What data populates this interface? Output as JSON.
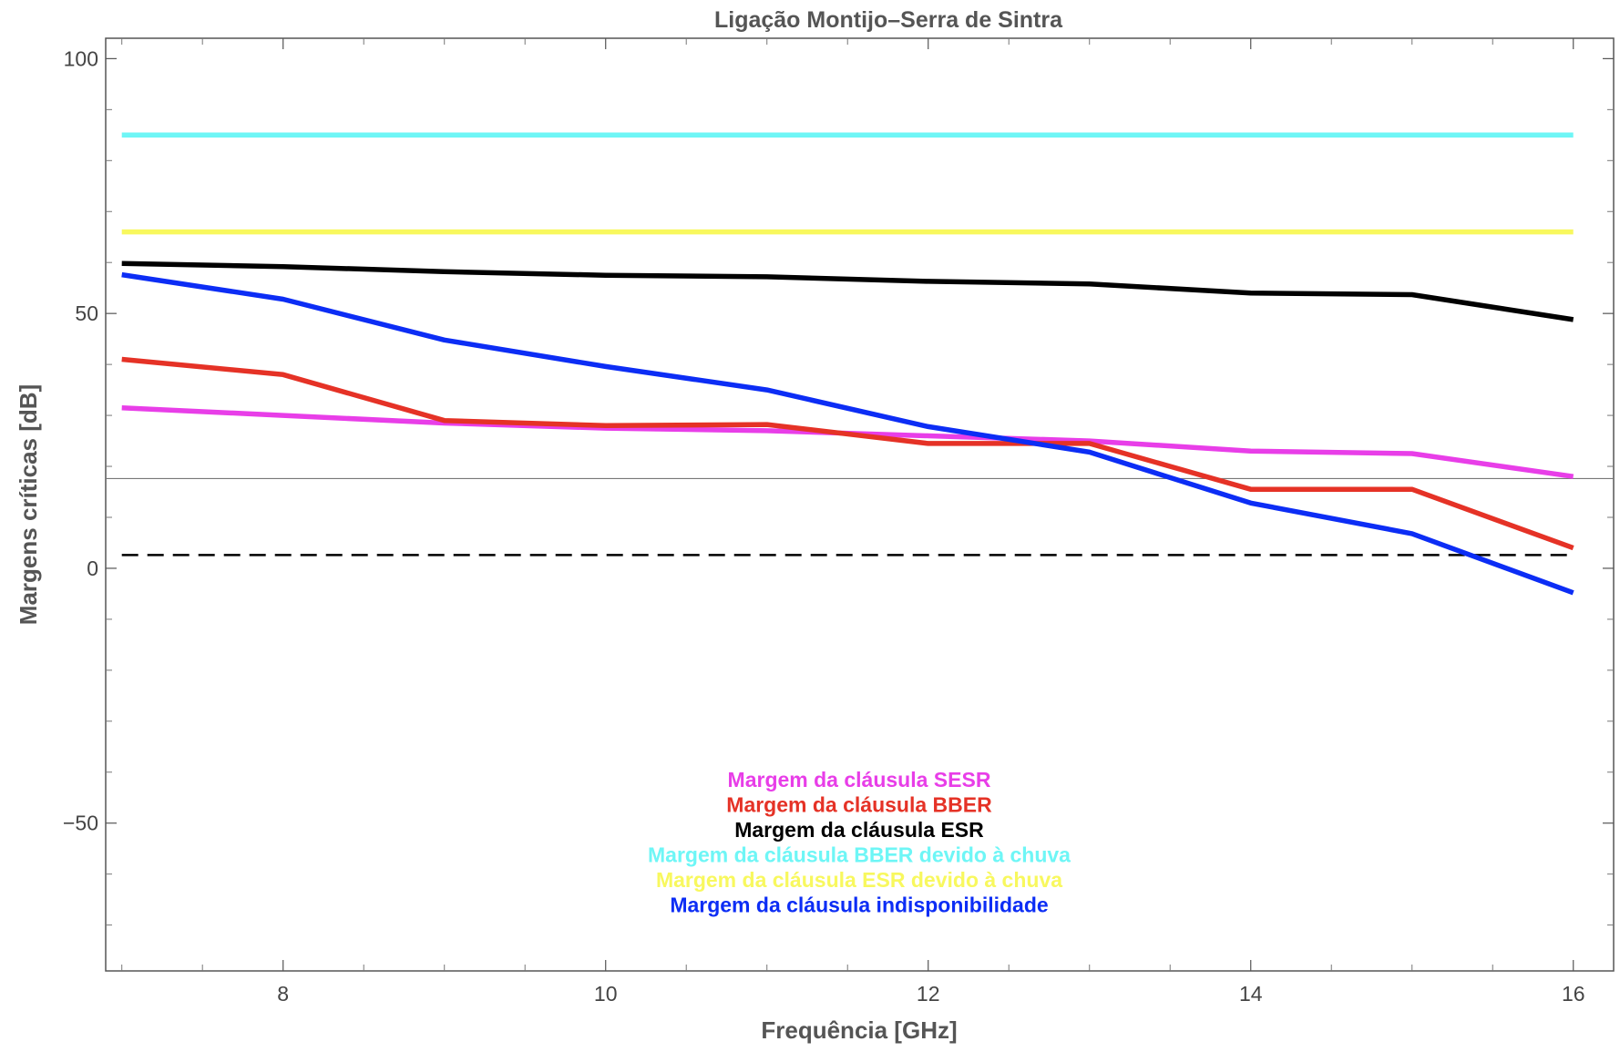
{
  "chart_data": {
    "type": "line",
    "title": "Ligação Montijo–Serra de Sintra",
    "xlabel": "Frequência [GHz]",
    "ylabel": "Margens críticas [dB]",
    "xlim": [
      6.9,
      16.25
    ],
    "ylim": [
      -79,
      104
    ],
    "x_ticks": [
      8,
      10,
      12,
      14,
      16
    ],
    "y_ticks": [
      -50,
      0,
      50,
      100
    ],
    "x_ticks_minor": [
      7,
      7.5,
      8.5,
      9,
      9.5,
      10.5,
      11,
      11.5,
      12.5,
      13,
      13.5,
      14.5,
      15,
      15.5
    ],
    "y_ticks_minor": [
      -70,
      -60,
      -40,
      -30,
      -20,
      -10,
      10,
      20,
      30,
      40,
      60,
      70,
      80,
      90
    ],
    "grid": false,
    "legend_position": "bottom-center",
    "reference_lines": [
      {
        "id": "solid",
        "y": 17.6,
        "style": "solid",
        "color": "#777777",
        "x_from": 6.9,
        "x_to": 16.25
      },
      {
        "id": "dashed",
        "y": 2.6,
        "style": "dashed",
        "color": "#000000",
        "x_from": 7,
        "x_to": 16
      }
    ],
    "series": [
      {
        "name": "Margem da cláusula SESR",
        "color": "#e83ee8",
        "x": [
          7,
          8,
          9,
          10,
          11,
          12,
          13,
          14,
          15,
          16
        ],
        "y": [
          31.5,
          30,
          28.5,
          27.5,
          27,
          26,
          25,
          23,
          22.5,
          18
        ]
      },
      {
        "name": "Margem da cláusula BBER",
        "color": "#e53226",
        "x": [
          7,
          8,
          9,
          10,
          11,
          12,
          13,
          14,
          15,
          16
        ],
        "y": [
          41,
          38,
          29,
          28,
          28.2,
          24.5,
          24.5,
          15.5,
          15.5,
          4
        ]
      },
      {
        "name": "Margem da cláusula ESR",
        "color": "#000000",
        "x": [
          7,
          8,
          9,
          10,
          11,
          12,
          13,
          14,
          15,
          16
        ],
        "y": [
          59.8,
          59.2,
          58.2,
          57.5,
          57.2,
          56.3,
          55.8,
          54,
          53.7,
          48.8
        ]
      },
      {
        "name": "Margem da cláusula BBER devido à chuva",
        "color": "#6ef6f6",
        "x": [
          7,
          16
        ],
        "y": [
          85,
          85
        ]
      },
      {
        "name": "Margem da cláusula ESR devido à chuva",
        "color": "#f8f85e",
        "x": [
          7,
          16
        ],
        "y": [
          66,
          66
        ]
      },
      {
        "name": "Margem da cláusula indisponibilidade",
        "color": "#0c2df5",
        "x": [
          7,
          8,
          9,
          10,
          11,
          12,
          13,
          14,
          15,
          16
        ],
        "y": [
          57.6,
          52.8,
          44.8,
          39.6,
          35,
          27.8,
          22.8,
          12.8,
          6.8,
          -4.8
        ]
      }
    ]
  }
}
